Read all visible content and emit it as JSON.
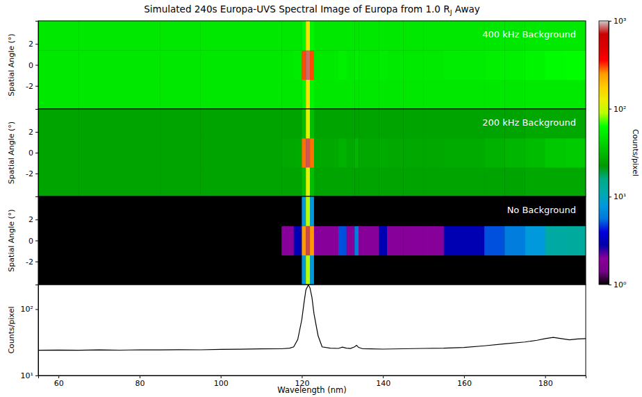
{
  "title": {
    "text": "Simulated 240s Europa-UVS Spectral Image of Europa from 1.0 R",
    "subscript": "J",
    "after": " Away"
  },
  "colorbar": {
    "label": "Counts/pixel",
    "log": true,
    "range": [
      1,
      1000
    ],
    "ticks": [
      {
        "value": 1,
        "label": "10⁰"
      },
      {
        "value": 10,
        "label": "10¹"
      },
      {
        "value": 100,
        "label": "10²"
      },
      {
        "value": 1000,
        "label": "10³"
      }
    ]
  },
  "chart_data": [
    {
      "type": "heatmap",
      "label": "400 kHz Background",
      "ylabel": "Spatial Angle (°)",
      "tick_labels": "y",
      "xlim": [
        55,
        190
      ],
      "ylim": [
        -4.2,
        4.2
      ],
      "yticks": [
        -2,
        0,
        2
      ],
      "x_edges": [
        55,
        65,
        75,
        85,
        95,
        105,
        115,
        118,
        120,
        121,
        122,
        123,
        125,
        129,
        131,
        133,
        134,
        136,
        139,
        141,
        145,
        150,
        155,
        160,
        165,
        170,
        175,
        180,
        185,
        190
      ],
      "y_edges": [
        -4.2,
        -1.4,
        1.4,
        4.2
      ],
      "cells": [
        [
          50,
          50,
          50,
          50,
          50,
          50,
          50,
          50,
          58,
          140,
          58,
          50,
          50,
          50,
          50,
          50,
          50,
          50,
          50,
          50,
          50,
          50,
          50,
          50,
          50,
          50,
          51,
          51,
          51
        ],
        [
          50,
          50,
          50,
          50,
          50,
          50,
          51,
          52,
          300,
          850,
          300,
          51,
          51,
          54,
          51,
          55,
          51,
          51,
          52,
          51,
          51,
          51,
          52,
          52,
          54,
          55,
          57,
          61,
          62
        ],
        [
          50,
          50,
          50,
          50,
          50,
          50,
          50,
          50,
          58,
          140,
          58,
          50,
          50,
          50,
          50,
          50,
          50,
          50,
          50,
          50,
          50,
          50,
          50,
          50,
          50,
          50,
          51,
          51,
          51
        ]
      ]
    },
    {
      "type": "heatmap",
      "label": "200 kHz Background",
      "ylabel": "Spatial Angle (°)",
      "tick_labels": "y",
      "xlim": [
        55,
        190
      ],
      "ylim": [
        -4.2,
        4.2
      ],
      "yticks": [
        -2,
        0,
        2
      ],
      "x_edges": [
        55,
        65,
        75,
        85,
        95,
        105,
        115,
        118,
        120,
        121,
        122,
        123,
        125,
        129,
        131,
        133,
        134,
        136,
        139,
        141,
        145,
        150,
        155,
        160,
        165,
        170,
        175,
        180,
        185,
        190
      ],
      "y_edges": [
        -4.2,
        -1.4,
        1.4,
        4.2
      ],
      "cells": [
        [
          25,
          25,
          25,
          25,
          25,
          25,
          25,
          25,
          33,
          115,
          33,
          25,
          25,
          25,
          25,
          25,
          25,
          25,
          25,
          25,
          25,
          25,
          25,
          25,
          25,
          25,
          26,
          26,
          26
        ],
        [
          25,
          25,
          25,
          25,
          25,
          25,
          26,
          27,
          275,
          820,
          275,
          26,
          26,
          29,
          26,
          30,
          26,
          26,
          27,
          26,
          26,
          26,
          27,
          27,
          29,
          30,
          32,
          36,
          37
        ],
        [
          25,
          25,
          25,
          25,
          25,
          25,
          25,
          25,
          33,
          115,
          33,
          25,
          25,
          25,
          25,
          25,
          25,
          25,
          25,
          25,
          25,
          25,
          25,
          25,
          25,
          25,
          26,
          26,
          26
        ]
      ]
    },
    {
      "type": "heatmap",
      "label": "No Background",
      "ylabel": "Spatial Angle (°)",
      "tick_labels": "y",
      "xlim": [
        55,
        190
      ],
      "ylim": [
        -4.2,
        4.2
      ],
      "yticks": [
        -2,
        0,
        2
      ],
      "x_edges": [
        55,
        65,
        75,
        85,
        95,
        105,
        115,
        118,
        120,
        121,
        122,
        123,
        125,
        129,
        131,
        133,
        134,
        136,
        139,
        141,
        145,
        150,
        155,
        160,
        165,
        170,
        175,
        180,
        185,
        190
      ],
      "y_edges": [
        -4.2,
        -1.4,
        1.4,
        4.2
      ],
      "cells": [
        [
          1,
          1,
          1,
          1,
          1,
          1,
          1,
          1,
          8,
          90,
          8,
          1,
          1,
          1,
          1,
          1,
          1,
          1,
          1,
          1,
          1,
          1,
          1,
          1,
          1,
          1,
          1,
          1,
          1
        ],
        [
          1,
          1,
          1,
          1,
          1,
          1,
          2,
          3,
          250,
          800,
          250,
          2,
          2,
          5,
          2,
          6,
          2,
          2,
          3,
          2,
          2,
          2,
          3,
          3,
          5,
          6,
          8,
          12,
          13
        ],
        [
          1,
          1,
          1,
          1,
          1,
          1,
          1,
          1,
          8,
          90,
          8,
          1,
          1,
          1,
          1,
          1,
          1,
          1,
          1,
          1,
          1,
          1,
          1,
          1,
          1,
          1,
          1,
          1,
          1
        ]
      ]
    },
    {
      "type": "line",
      "xlabel": "Wavelength (nm)",
      "ylabel": "Counts/pixel",
      "log": "y",
      "xlim": [
        55,
        190
      ],
      "ylim": [
        10,
        235
      ],
      "xticks": [
        60,
        80,
        100,
        120,
        140,
        160,
        180
      ],
      "yticks": [
        {
          "value": 10,
          "label": "10¹"
        },
        {
          "value": 100,
          "label": "10²"
        }
      ],
      "x": [
        55,
        60,
        65,
        70,
        75,
        80,
        85,
        90,
        95,
        100,
        105,
        110,
        115,
        117,
        118,
        119,
        120,
        120.5,
        121,
        121.6,
        122,
        122.5,
        123,
        124,
        125,
        127,
        129,
        130,
        131,
        132,
        133,
        133.5,
        134,
        135,
        137,
        140,
        145,
        150,
        155,
        160,
        165,
        170,
        175,
        178,
        180,
        182,
        184,
        186,
        188,
        190
      ],
      "series": [
        {
          "color": "#000000",
          "values": [
            24,
            24.2,
            24,
            24.3,
            24.1,
            24.4,
            24.3,
            24.5,
            24.4,
            24.8,
            24.9,
            25.2,
            25.3,
            25.8,
            27,
            35,
            70,
            120,
            195,
            232,
            210,
            150,
            85,
            40,
            27,
            25.8,
            25.6,
            26.8,
            25.8,
            25.5,
            27,
            28.5,
            26.5,
            25.3,
            25.2,
            25,
            25.3,
            25.6,
            25.8,
            26.5,
            28,
            30,
            32,
            34,
            36,
            37.5,
            36,
            34.5,
            35.5,
            36
          ]
        }
      ]
    }
  ]
}
